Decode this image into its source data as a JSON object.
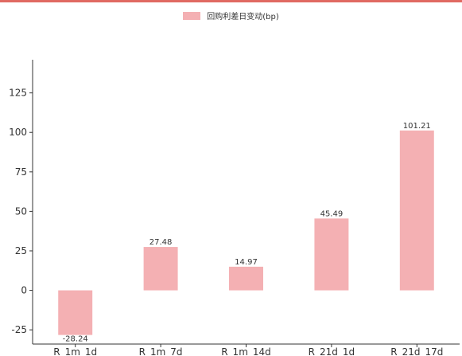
{
  "chart_data": {
    "type": "bar",
    "categories": [
      "R_1m_1d",
      "R_1m_7d",
      "R_1m_14d",
      "R_21d_1d",
      "R_21d_17d"
    ],
    "series": [
      {
        "name": "回购利差日变动(bp)",
        "values": [
          -28.24,
          27.48,
          14.97,
          45.49,
          101.21
        ]
      }
    ],
    "data_labels": [
      "-28.24",
      "27.48",
      "14.97",
      "45.49",
      "101.21"
    ],
    "yticks": [
      -25,
      0,
      25,
      50,
      75,
      100,
      125
    ],
    "ylim": [
      -34,
      146
    ],
    "legend_position": "top-center",
    "grid": false,
    "colors": {
      "bar": "#f4b0b3",
      "axis": "#333333",
      "top_rule": "#e06a62"
    }
  }
}
